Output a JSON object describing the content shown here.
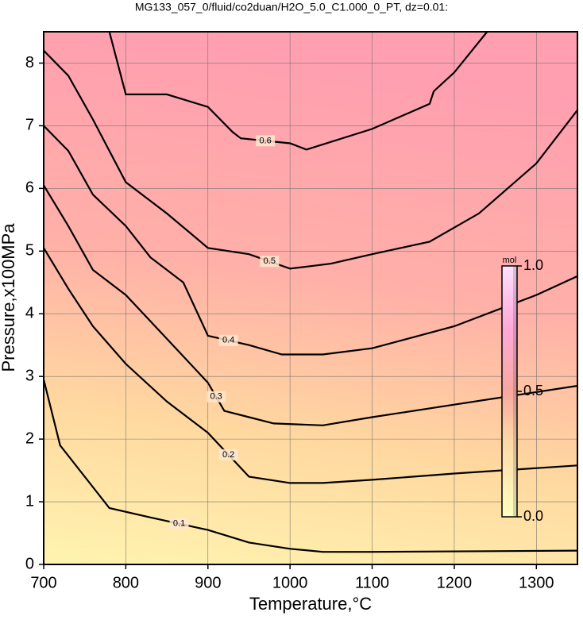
{
  "chart_data": {
    "type": "contour",
    "title": "MG133_057_0/fluid/co2duan/H2O_5.0_C1.000_0_PT, dz=0.01:",
    "x_label": "Temperature,°C",
    "y_label": "Pressure,x100MPa",
    "xlim": [
      700,
      1350
    ],
    "ylim": [
      0,
      8.5
    ],
    "xticks": [
      700,
      800,
      900,
      1000,
      1100,
      1200,
      1300
    ],
    "yticks": [
      0,
      1,
      2,
      3,
      4,
      5,
      6,
      7,
      8
    ],
    "grid": true,
    "contours": [
      {
        "level": 0.1,
        "x": [
          700,
          720,
          750,
          780,
          830,
          900,
          950,
          1000,
          1040,
          1100,
          1350
        ],
        "y": [
          2.95,
          1.9,
          1.4,
          0.9,
          0.75,
          0.55,
          0.35,
          0.25,
          0.2,
          0.2,
          0.22
        ]
      },
      {
        "level": 0.2,
        "x": [
          700,
          730,
          760,
          800,
          850,
          900,
          950,
          1000,
          1040,
          1100,
          1200,
          1350
        ],
        "y": [
          5.05,
          4.4,
          3.8,
          3.2,
          2.6,
          2.1,
          1.4,
          1.3,
          1.3,
          1.35,
          1.45,
          1.58
        ]
      },
      {
        "level": 0.3,
        "x": [
          700,
          730,
          760,
          800,
          850,
          900,
          920,
          950,
          980,
          1040,
          1100,
          1200,
          1350
        ],
        "y": [
          6.05,
          5.4,
          4.7,
          4.3,
          3.6,
          2.9,
          2.45,
          2.35,
          2.25,
          2.22,
          2.35,
          2.55,
          2.85
        ]
      },
      {
        "level": 0.4,
        "x": [
          700,
          730,
          760,
          800,
          830,
          870,
          900,
          950,
          990,
          1040,
          1100,
          1200,
          1300,
          1350
        ],
        "y": [
          7.0,
          6.6,
          5.9,
          5.4,
          4.9,
          4.5,
          3.65,
          3.5,
          3.35,
          3.35,
          3.45,
          3.8,
          4.3,
          4.6
        ]
      },
      {
        "level": 0.5,
        "x": [
          700,
          730,
          760,
          800,
          850,
          900,
          950,
          1000,
          1050,
          1100,
          1170,
          1230,
          1300,
          1350
        ],
        "y": [
          8.2,
          7.8,
          7.1,
          6.1,
          5.6,
          5.05,
          4.95,
          4.72,
          4.8,
          4.95,
          5.15,
          5.6,
          6.4,
          7.25
        ]
      },
      {
        "level": 0.6,
        "x": [
          780,
          800,
          850,
          900,
          930,
          940,
          1000,
          1020,
          1100,
          1170,
          1175,
          1200,
          1240
        ],
        "y": [
          8.5,
          7.5,
          7.5,
          7.3,
          6.9,
          6.8,
          6.72,
          6.62,
          6.95,
          7.35,
          7.55,
          7.85,
          8.5
        ]
      }
    ],
    "colorbar": {
      "title": "mol",
      "lim": [
        0,
        1
      ],
      "ticks": [
        {
          "value": 0,
          "label": "0.0"
        },
        0.5,
        {
          "value": 1,
          "label": "1.0"
        }
      ]
    }
  }
}
